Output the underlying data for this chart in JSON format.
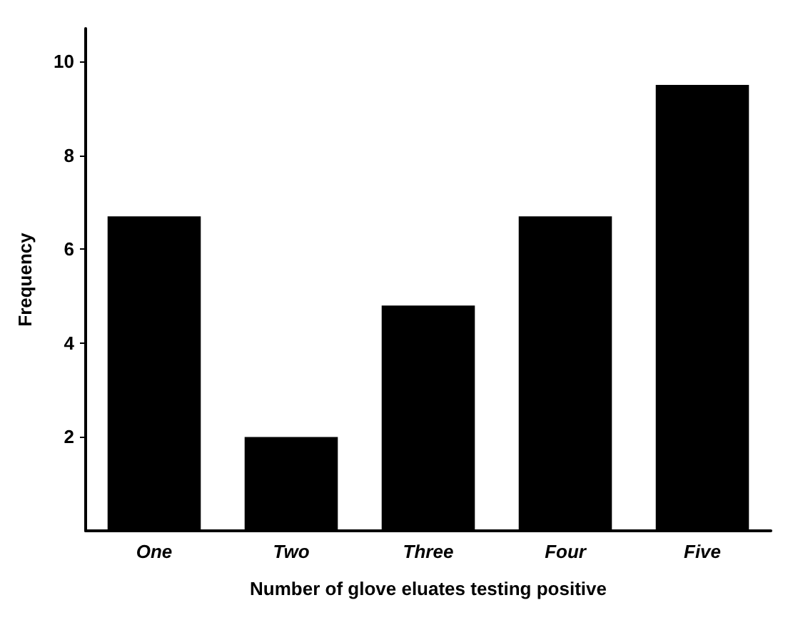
{
  "chart_data": {
    "type": "bar",
    "xlabel": "Number of glove eluates testing positive",
    "ylabel": "Frequency",
    "categories": [
      "One",
      "Two",
      "Three",
      "Four",
      "Five"
    ],
    "values": [
      6.7,
      2.0,
      4.8,
      6.7,
      9.5
    ],
    "color": "#000000",
    "ylim": [
      0,
      10.7
    ],
    "yticks": [
      2,
      4,
      6,
      8,
      10
    ],
    "grid": false
  }
}
